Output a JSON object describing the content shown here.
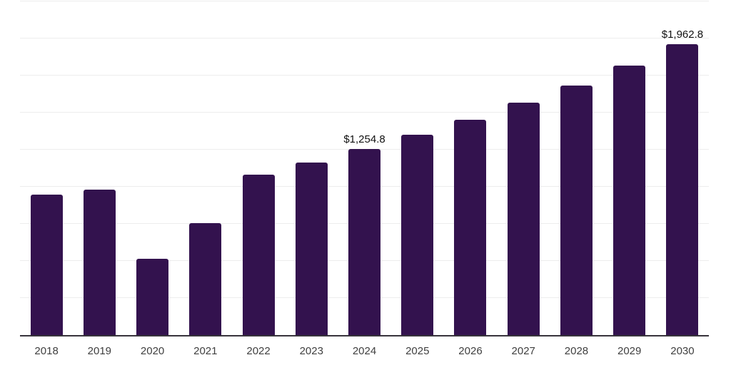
{
  "chart_data": {
    "type": "bar",
    "title": "",
    "xlabel": "",
    "ylabel": "",
    "categories": [
      "2018",
      "2019",
      "2020",
      "2021",
      "2022",
      "2023",
      "2024",
      "2025",
      "2026",
      "2027",
      "2028",
      "2029",
      "2030"
    ],
    "values": [
      946,
      980,
      513,
      755,
      1081,
      1163,
      1254.8,
      1350,
      1452,
      1565,
      1682,
      1818,
      1962.8
    ],
    "data_labels": [
      null,
      null,
      null,
      null,
      null,
      null,
      "$1,254.8",
      null,
      null,
      null,
      null,
      null,
      "$1,962.8"
    ],
    "ylim": [
      0,
      2250
    ],
    "grid_step": 250,
    "grid": true,
    "legend": false,
    "colors": {
      "bar": "#33124E",
      "gridline": "#EDEDED",
      "axis_line": "#37333B",
      "data_label": "#111111",
      "tick_label": "#3F3F3F",
      "background": "#FFFFFF"
    }
  }
}
